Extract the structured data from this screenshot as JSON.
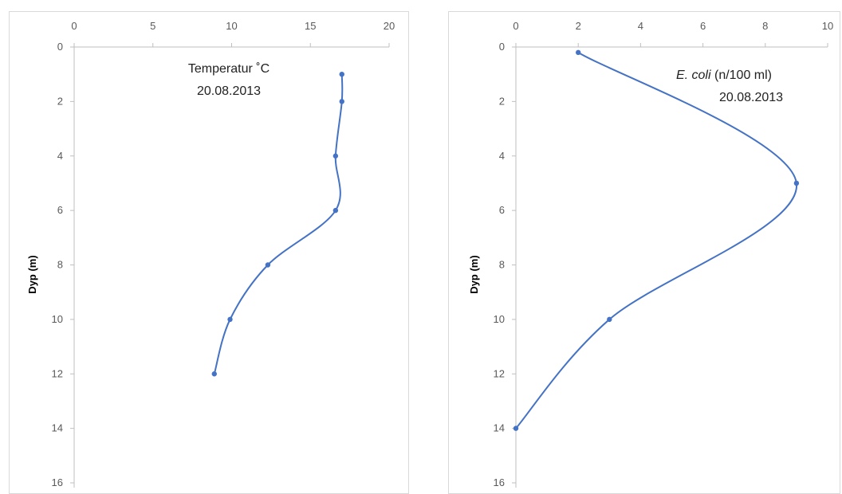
{
  "chart_data": [
    {
      "type": "line",
      "title": "Temperatur ˚C",
      "subtitle": "20.08.2013",
      "title_italic_part": "",
      "ylabel": "Dyp (m)",
      "xlabel": "",
      "xlim": [
        0,
        20
      ],
      "ylim": [
        0,
        16
      ],
      "x_ticks": [
        "0",
        "5",
        "10",
        "15",
        "20"
      ],
      "y_ticks": [
        "0",
        "2",
        "4",
        "6",
        "8",
        "10",
        "12",
        "14",
        "16"
      ],
      "y_inverted": true,
      "x_axis_position": "top",
      "grid": false,
      "legend": "none",
      "line_color": "#4472c4",
      "series": [
        {
          "points": [
            {
              "x": 17.0,
              "y": 1
            },
            {
              "x": 17.0,
              "y": 2
            },
            {
              "x": 16.6,
              "y": 4
            },
            {
              "x": 16.6,
              "y": 6
            },
            {
              "x": 12.3,
              "y": 8
            },
            {
              "x": 9.9,
              "y": 10
            },
            {
              "x": 8.9,
              "y": 12
            }
          ]
        }
      ]
    },
    {
      "type": "line",
      "title": "(n/100 ml)",
      "title_italic_part": "E. coli",
      "subtitle": "20.08.2013",
      "ylabel": "Dyp (m)",
      "xlabel": "",
      "xlim": [
        0,
        10
      ],
      "ylim": [
        0,
        16
      ],
      "x_ticks": [
        "0",
        "2",
        "4",
        "6",
        "8",
        "10"
      ],
      "y_ticks": [
        "0",
        "2",
        "4",
        "6",
        "8",
        "10",
        "12",
        "14",
        "16"
      ],
      "y_inverted": true,
      "x_axis_position": "top",
      "grid": false,
      "legend": "none",
      "line_color": "#4472c4",
      "series": [
        {
          "points": [
            {
              "x": 2,
              "y": 0.2
            },
            {
              "x": 9,
              "y": 5
            },
            {
              "x": 3,
              "y": 10
            },
            {
              "x": 0,
              "y": 14
            }
          ]
        }
      ]
    }
  ]
}
